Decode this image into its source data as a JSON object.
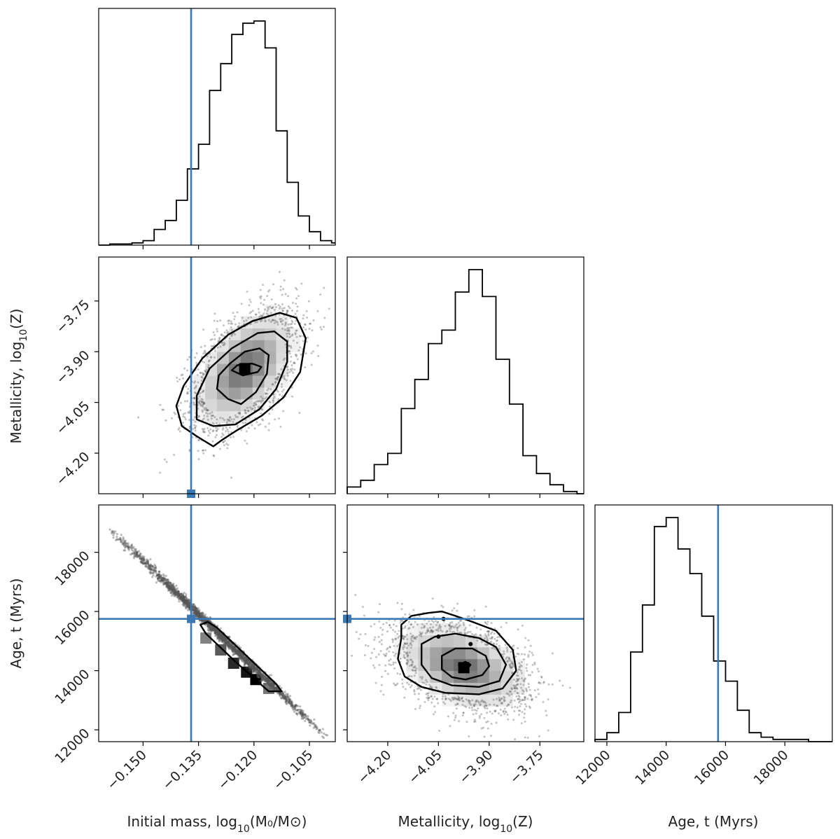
{
  "colors": {
    "truth": "#3b78b4",
    "hist": "#000000",
    "points": "#555555"
  },
  "chart_data": {
    "type": "corner",
    "parameters": [
      {
        "key": "mass",
        "label_main": "Initial mass, log",
        "label_sub": "10",
        "label_tail": "(M₀/M⊙)",
        "range": [
          -0.162,
          -0.098
        ],
        "ticks": [
          -0.15,
          -0.135,
          -0.12,
          -0.105
        ],
        "tick_labels": [
          "−0.150",
          "−0.135",
          "−0.120",
          "−0.105"
        ],
        "truth": -0.137
      },
      {
        "key": "metallicity",
        "label_main": "Metallicity, log",
        "label_sub": "10",
        "label_tail": "(Z)",
        "range": [
          -4.32,
          -3.62
        ],
        "ticks": [
          -4.2,
          -4.05,
          -3.9,
          -3.75
        ],
        "tick_labels": [
          "−4.20",
          "−4.05",
          "−3.90",
          "−3.75"
        ],
        "truth": -4.32
      },
      {
        "key": "age",
        "label_main": "Age, t (Myrs)",
        "label_sub": "",
        "label_tail": "",
        "range": [
          11600,
          19600
        ],
        "ticks": [
          12000,
          14000,
          16000,
          18000
        ],
        "tick_labels": [
          "12000",
          "14000",
          "16000",
          "18000"
        ],
        "truth": 15750
      }
    ],
    "histograms": {
      "mass": {
        "edges": [
          -0.162,
          -0.159,
          -0.156,
          -0.153,
          -0.15,
          -0.147,
          -0.144,
          -0.141,
          -0.138,
          -0.135,
          -0.132,
          -0.129,
          -0.126,
          -0.123,
          -0.12,
          -0.117,
          -0.114,
          -0.111,
          -0.108,
          -0.105,
          -0.102,
          -0.099,
          -0.098
        ],
        "counts": [
          0,
          0.005,
          0.005,
          0.01,
          0.02,
          0.07,
          0.11,
          0.2,
          0.34,
          0.45,
          0.69,
          0.81,
          0.94,
          0.99,
          1.0,
          0.88,
          0.51,
          0.28,
          0.13,
          0.06,
          0.02,
          0.01
        ]
      },
      "metallicity": {
        "edges": [
          -4.32,
          -4.28,
          -4.24,
          -4.2,
          -4.16,
          -4.12,
          -4.08,
          -4.04,
          -4.0,
          -3.96,
          -3.92,
          -3.88,
          -3.84,
          -3.8,
          -3.76,
          -3.72,
          -3.68,
          -3.64,
          -3.62
        ],
        "counts": [
          0.03,
          0.06,
          0.13,
          0.18,
          0.38,
          0.51,
          0.67,
          0.73,
          0.9,
          1.0,
          0.88,
          0.6,
          0.4,
          0.17,
          0.09,
          0.04,
          0.01,
          0.0
        ]
      },
      "age": {
        "edges": [
          11600,
          12000,
          12400,
          12800,
          13200,
          13600,
          14000,
          14400,
          14800,
          15200,
          15600,
          16000,
          16400,
          16800,
          17200,
          17600,
          18000,
          18400,
          18800,
          19200,
          19600
        ],
        "counts": [
          0.01,
          0.04,
          0.13,
          0.4,
          0.61,
          0.96,
          1.0,
          0.86,
          0.75,
          0.56,
          0.36,
          0.27,
          0.14,
          0.04,
          0.02,
          0.01,
          0.01,
          0.01,
          0.0,
          0.0
        ]
      }
    },
    "pairs": {
      "mass_metallicity": {
        "center": [
          -0.1225,
          -3.95
        ],
        "sigma": [
          0.0062,
          0.078
        ],
        "rho": 0.5,
        "density_peak": [
          -0.1225,
          -3.95
        ],
        "contours": [
          [
            [
              -0.1395,
              -4.12
            ],
            [
              -0.1355,
              -4.15
            ],
            [
              -0.131,
              -4.18
            ],
            [
              -0.1285,
              -4.16
            ],
            [
              -0.125,
              -4.135
            ],
            [
              -0.118,
              -4.09
            ],
            [
              -0.112,
              -4.035
            ],
            [
              -0.1075,
              -3.96
            ],
            [
              -0.106,
              -3.86
            ],
            [
              -0.1085,
              -3.8
            ],
            [
              -0.113,
              -3.785
            ],
            [
              -0.1205,
              -3.81
            ],
            [
              -0.127,
              -3.85
            ],
            [
              -0.134,
              -3.92
            ],
            [
              -0.139,
              -4.0
            ],
            [
              -0.141,
              -4.06
            ]
          ],
          [
            [
              -0.1355,
              -4.1
            ],
            [
              -0.131,
              -4.12
            ],
            [
              -0.125,
              -4.115
            ],
            [
              -0.1185,
              -4.07
            ],
            [
              -0.114,
              -4.01
            ],
            [
              -0.111,
              -3.93
            ],
            [
              -0.111,
              -3.87
            ],
            [
              -0.1145,
              -3.84
            ],
            [
              -0.119,
              -3.845
            ],
            [
              -0.126,
              -3.89
            ],
            [
              -0.132,
              -3.95
            ],
            [
              -0.1355,
              -4.03
            ]
          ],
          [
            [
              -0.13,
              -4.01
            ],
            [
              -0.127,
              -4.04
            ],
            [
              -0.1235,
              -4.055
            ],
            [
              -0.1195,
              -4.02
            ],
            [
              -0.1165,
              -3.965
            ],
            [
              -0.116,
              -3.91
            ],
            [
              -0.1185,
              -3.89
            ],
            [
              -0.1225,
              -3.9
            ],
            [
              -0.1265,
              -3.935
            ],
            [
              -0.1295,
              -3.97
            ]
          ],
          [
            [
              -0.126,
              -3.955
            ],
            [
              -0.123,
              -3.97
            ],
            [
              -0.119,
              -3.96
            ],
            [
              -0.118,
              -3.945
            ],
            [
              -0.1205,
              -3.935
            ],
            [
              -0.1245,
              -3.94
            ]
          ]
        ]
      },
      "mass_age": {
        "line_start": [
          -0.159,
          18800
        ],
        "line_end": [
          -0.1,
          11700
        ],
        "density_peak": [
          -0.1195,
          13800
        ],
        "contours": [
          [
            [
              -0.1345,
              15550
            ],
            [
              -0.133,
              15250
            ],
            [
              -0.125,
              14300
            ],
            [
              -0.116,
              13300
            ],
            [
              -0.1125,
              13300
            ],
            [
              -0.114,
              13550
            ],
            [
              -0.122,
              14500
            ],
            [
              -0.13,
              15450
            ],
            [
              -0.1325,
              15650
            ]
          ]
        ]
      },
      "metallicity_age": {
        "center": [
          -3.98,
          14150
        ],
        "sigma": [
          0.085,
          640
        ],
        "rho": -0.4,
        "density_peak": [
          -3.975,
          14100
        ],
        "contours": [
          [
            [
              -4.16,
              15550
            ],
            [
              -4.13,
              15850
            ],
            [
              -4.08,
              15950
            ],
            [
              -4.04,
              16000
            ],
            [
              -4.0,
              15850
            ],
            [
              -3.95,
              15650
            ],
            [
              -3.88,
              15350
            ],
            [
              -3.83,
              14700
            ],
            [
              -3.82,
              14000
            ],
            [
              -3.86,
              13400
            ],
            [
              -3.93,
              13200
            ],
            [
              -4.03,
              13250
            ],
            [
              -4.1,
              13450
            ],
            [
              -4.15,
              13800
            ],
            [
              -4.17,
              14400
            ],
            [
              -4.16,
              15100
            ]
          ],
          [
            [
              -4.1,
              14900
            ],
            [
              -4.06,
              15150
            ],
            [
              -4.0,
              15250
            ],
            [
              -3.93,
              15100
            ],
            [
              -3.88,
              14800
            ],
            [
              -3.85,
              14200
            ],
            [
              -3.87,
              13650
            ],
            [
              -3.93,
              13450
            ],
            [
              -4.01,
              13500
            ],
            [
              -4.07,
              13750
            ],
            [
              -4.1,
              14200
            ]
          ],
          [
            [
              -4.04,
              14500
            ],
            [
              -4.0,
              14750
            ],
            [
              -3.95,
              14750
            ],
            [
              -3.91,
              14500
            ],
            [
              -3.9,
              14150
            ],
            [
              -3.92,
              13850
            ],
            [
              -3.97,
              13700
            ],
            [
              -4.01,
              13780
            ],
            [
              -4.04,
              14050
            ]
          ],
          [
            [
              -3.99,
              14200
            ],
            [
              -3.97,
              14300
            ],
            [
              -3.955,
              14200
            ],
            [
              -3.965,
              14050
            ],
            [
              -3.985,
              14050
            ]
          ]
        ],
        "outlier_dots": [
          [
            -4.035,
            15750
          ],
          [
            -4.05,
            15150
          ],
          [
            -3.955,
            14900
          ]
        ]
      }
    }
  }
}
